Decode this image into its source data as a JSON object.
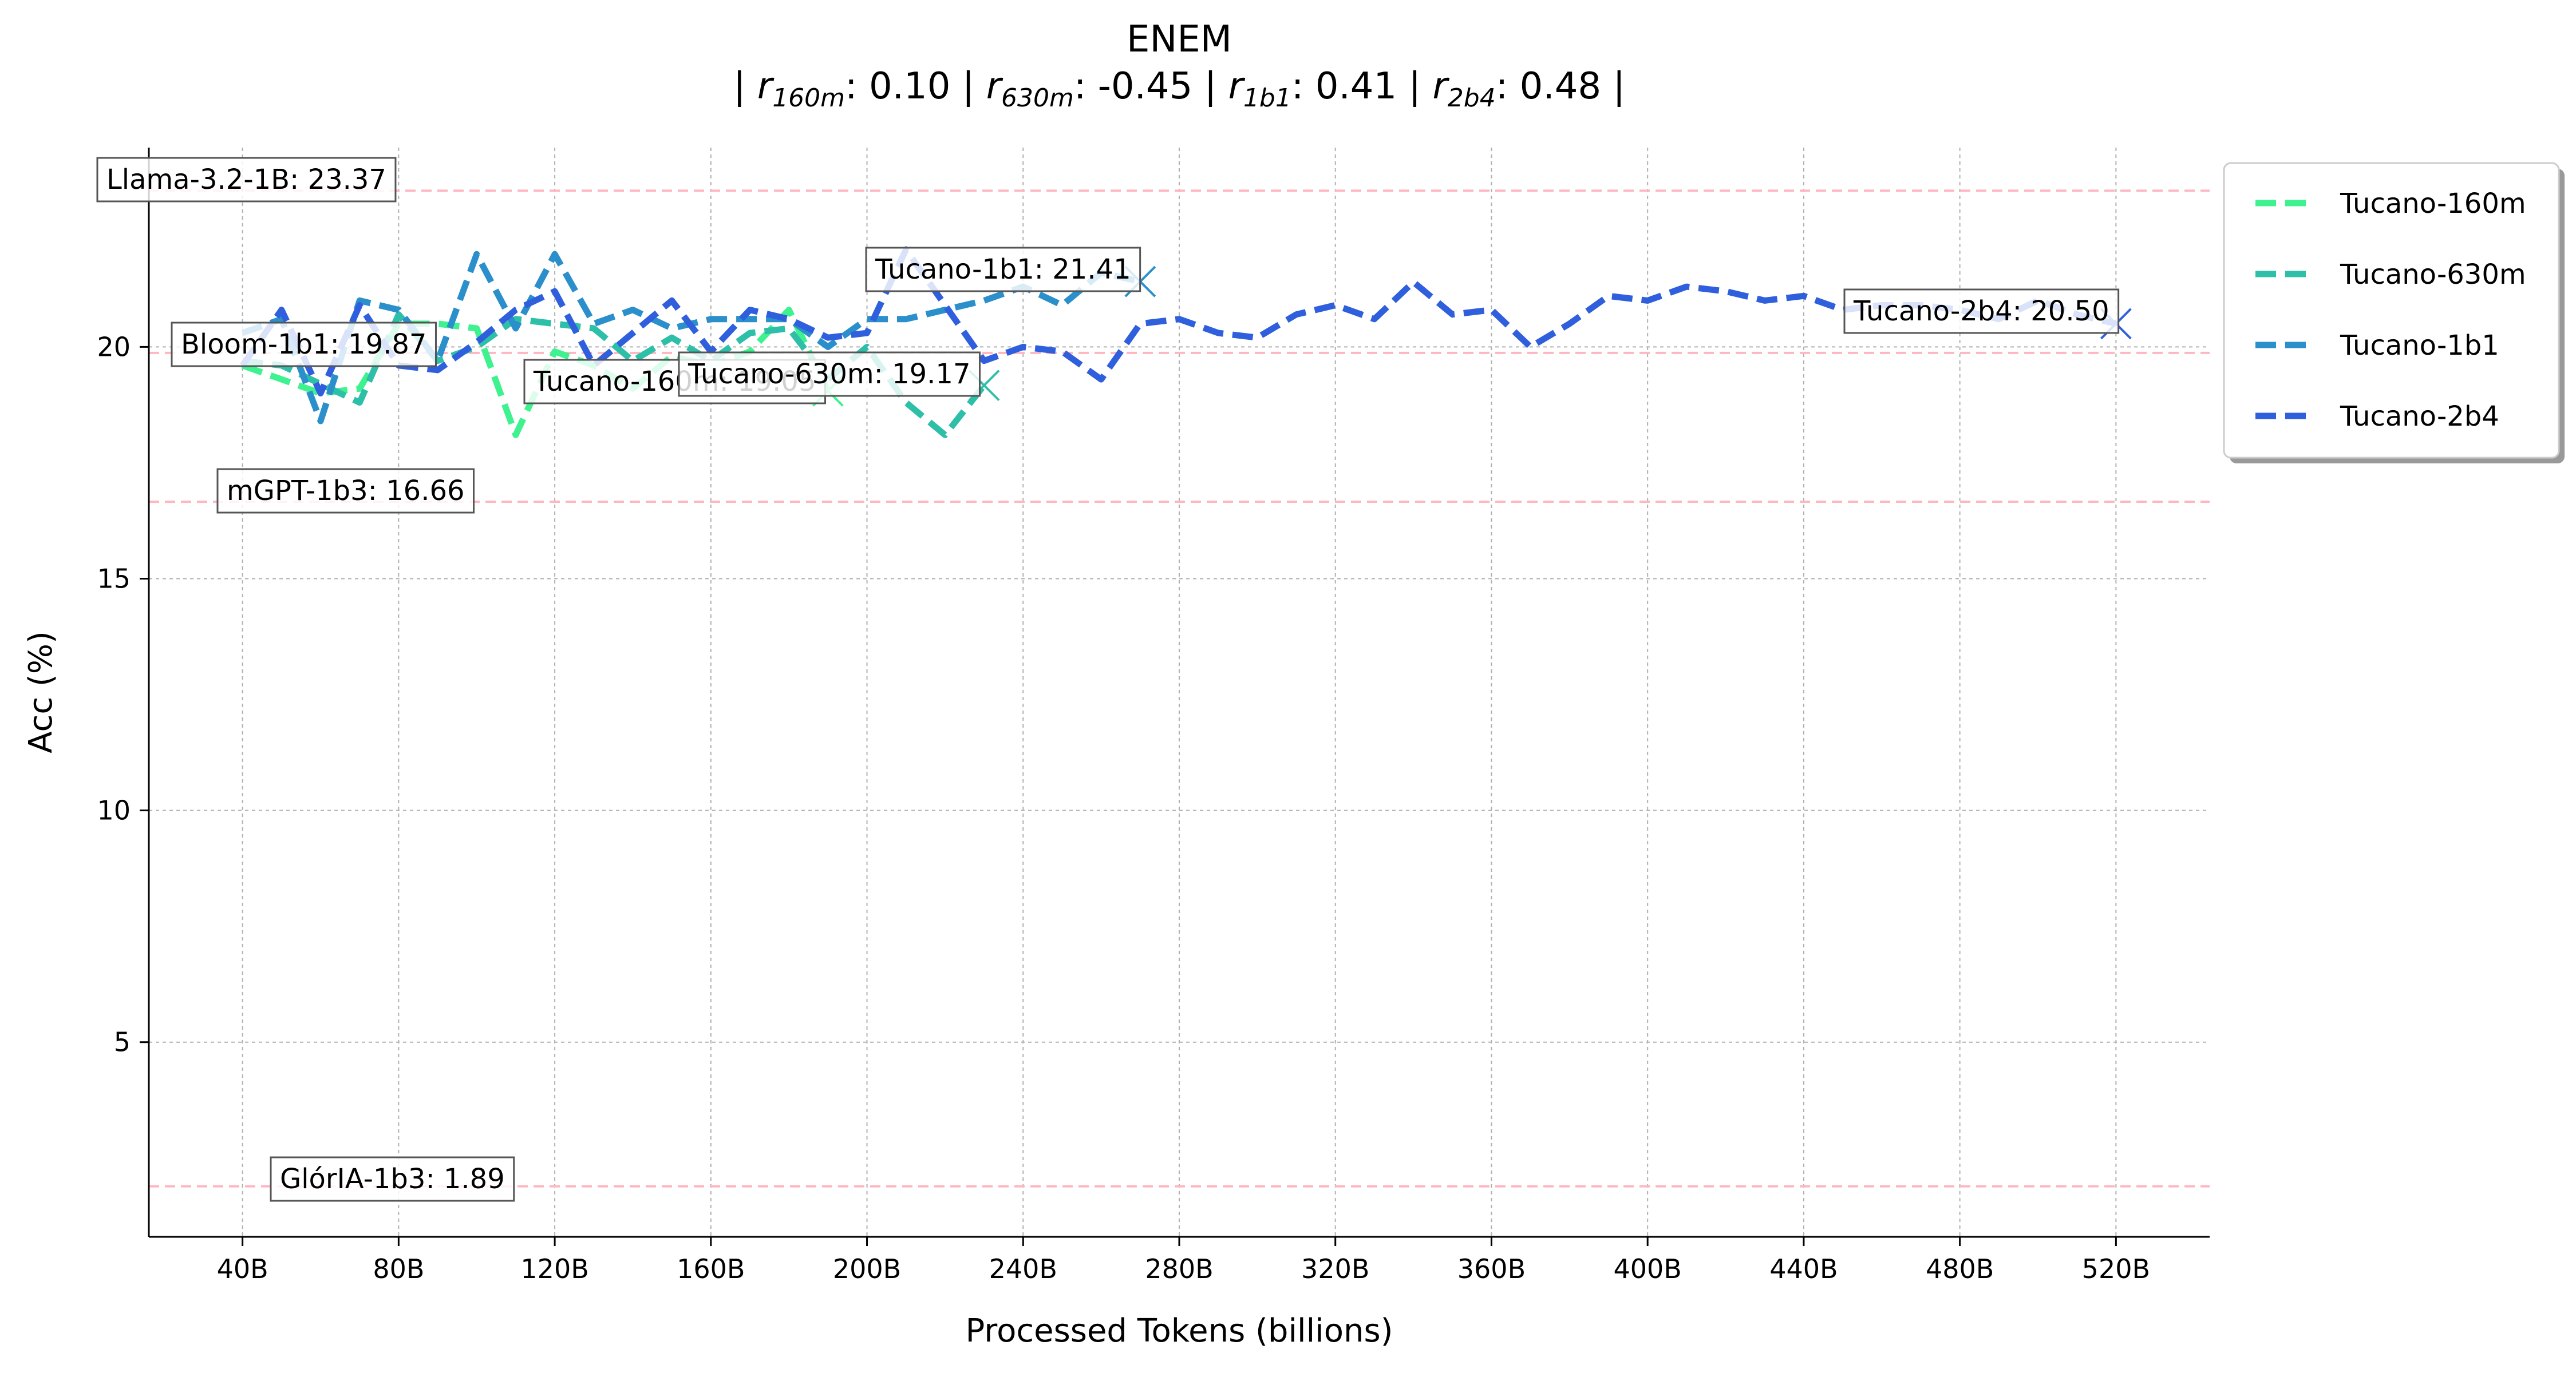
{
  "chart_data": {
    "type": "line",
    "title": "ENEM",
    "subtitle": {
      "parts": [
        {
          "sym": "r",
          "sub": "160m",
          "val": "0.10"
        },
        {
          "sym": "r",
          "sub": "630m",
          "val": "-0.45"
        },
        {
          "sym": "r",
          "sub": "1b1",
          "val": "0.41"
        },
        {
          "sym": "r",
          "sub": "2b4",
          "val": "0.48"
        }
      ]
    },
    "xlabel": "Processed Tokens (billions)",
    "ylabel": "Acc (%)",
    "xlim": [
      16,
      544
    ],
    "ylim": [
      0.8,
      24.3
    ],
    "xticks": [
      {
        "v": 40,
        "label": "40B"
      },
      {
        "v": 80,
        "label": "80B"
      },
      {
        "v": 120,
        "label": "120B"
      },
      {
        "v": 160,
        "label": "160B"
      },
      {
        "v": 200,
        "label": "200B"
      },
      {
        "v": 240,
        "label": "240B"
      },
      {
        "v": 280,
        "label": "280B"
      },
      {
        "v": 320,
        "label": "320B"
      },
      {
        "v": 360,
        "label": "360B"
      },
      {
        "v": 400,
        "label": "400B"
      },
      {
        "v": 440,
        "label": "440B"
      },
      {
        "v": 480,
        "label": "480B"
      },
      {
        "v": 520,
        "label": "520B"
      }
    ],
    "yticks": [
      {
        "v": 5,
        "label": "5"
      },
      {
        "v": 10,
        "label": "10"
      },
      {
        "v": 15,
        "label": "15"
      },
      {
        "v": 20,
        "label": "20"
      }
    ],
    "grid": true,
    "legend_position": "outside top-right",
    "series": [
      {
        "name": "Tucano-160m",
        "color": "#3ef38f",
        "width": 11,
        "final_label": "Tucano-160m: 19.05",
        "x": [
          40,
          50,
          60,
          70,
          80,
          90,
          100,
          110,
          120,
          130,
          140,
          150,
          160,
          170,
          180,
          190
        ],
        "y": [
          19.6,
          19.3,
          19.0,
          19.1,
          20.5,
          20.5,
          20.4,
          18.1,
          19.9,
          19.6,
          19.1,
          19.8,
          19.6,
          19.9,
          20.8,
          19.05
        ]
      },
      {
        "name": "Tucano-630m",
        "color": "#2ebfa9",
        "width": 11,
        "final_label": "Tucano-630m: 19.17",
        "x": [
          40,
          50,
          60,
          70,
          80,
          90,
          100,
          110,
          120,
          130,
          140,
          150,
          160,
          170,
          180,
          190,
          200,
          210,
          220,
          230
        ],
        "y": [
          19.7,
          19.6,
          19.2,
          18.8,
          20.7,
          19.7,
          20.0,
          20.6,
          20.5,
          20.4,
          19.7,
          20.2,
          19.7,
          20.3,
          20.4,
          19.3,
          20.0,
          18.8,
          18.1,
          19.17
        ]
      },
      {
        "name": "Tucano-1b1",
        "color": "#2b8fcb",
        "width": 11,
        "final_label": "Tucano-1b1: 21.41",
        "x": [
          40,
          50,
          60,
          70,
          80,
          90,
          100,
          110,
          120,
          130,
          140,
          150,
          160,
          170,
          180,
          190,
          200,
          210,
          220,
          230,
          240,
          250,
          260,
          270
        ],
        "y": [
          20.3,
          20.6,
          18.4,
          21.0,
          20.8,
          19.7,
          22.0,
          20.4,
          22.0,
          20.5,
          20.8,
          20.4,
          20.6,
          20.6,
          20.6,
          20.0,
          20.6,
          20.6,
          20.8,
          21.0,
          21.3,
          20.9,
          21.6,
          21.41
        ]
      },
      {
        "name": "Tucano-2b4",
        "color": "#2f5fdc",
        "width": 11,
        "final_label": "Tucano-2b4: 20.50",
        "x": [
          40,
          50,
          60,
          70,
          80,
          90,
          100,
          110,
          120,
          130,
          140,
          150,
          160,
          170,
          180,
          190,
          200,
          210,
          220,
          230,
          240,
          250,
          260,
          270,
          280,
          290,
          300,
          310,
          320,
          330,
          340,
          350,
          360,
          370,
          380,
          390,
          400,
          410,
          420,
          430,
          440,
          450,
          460,
          470,
          480,
          490,
          500,
          510,
          520
        ],
        "y": [
          19.6,
          20.8,
          19.0,
          20.9,
          19.6,
          19.5,
          20.1,
          20.8,
          21.2,
          19.6,
          20.3,
          21.0,
          19.9,
          20.8,
          20.6,
          20.2,
          20.3,
          22.1,
          20.9,
          19.7,
          20.0,
          19.9,
          19.3,
          20.5,
          20.6,
          20.3,
          20.2,
          20.7,
          20.9,
          20.6,
          21.4,
          20.7,
          20.8,
          20.0,
          20.5,
          21.1,
          21.0,
          21.3,
          21.2,
          21.0,
          21.1,
          20.8,
          20.9,
          20.9,
          20.8,
          20.6,
          21.0,
          20.7,
          20.5
        ]
      }
    ],
    "baselines": [
      {
        "label": "Llama-3.2-1B: 23.37",
        "y": 23.37
      },
      {
        "label": "Bloom-1b1: 19.87",
        "y": 19.87
      },
      {
        "label": "mGPT-1b3: 16.66",
        "y": 16.66
      },
      {
        "label": "GlórIA-1b3: 1.89",
        "y": 1.89
      }
    ],
    "colors": {
      "baseline": "#ffb6c1",
      "grid": "#b0b0b0",
      "axis": "#000000"
    }
  }
}
